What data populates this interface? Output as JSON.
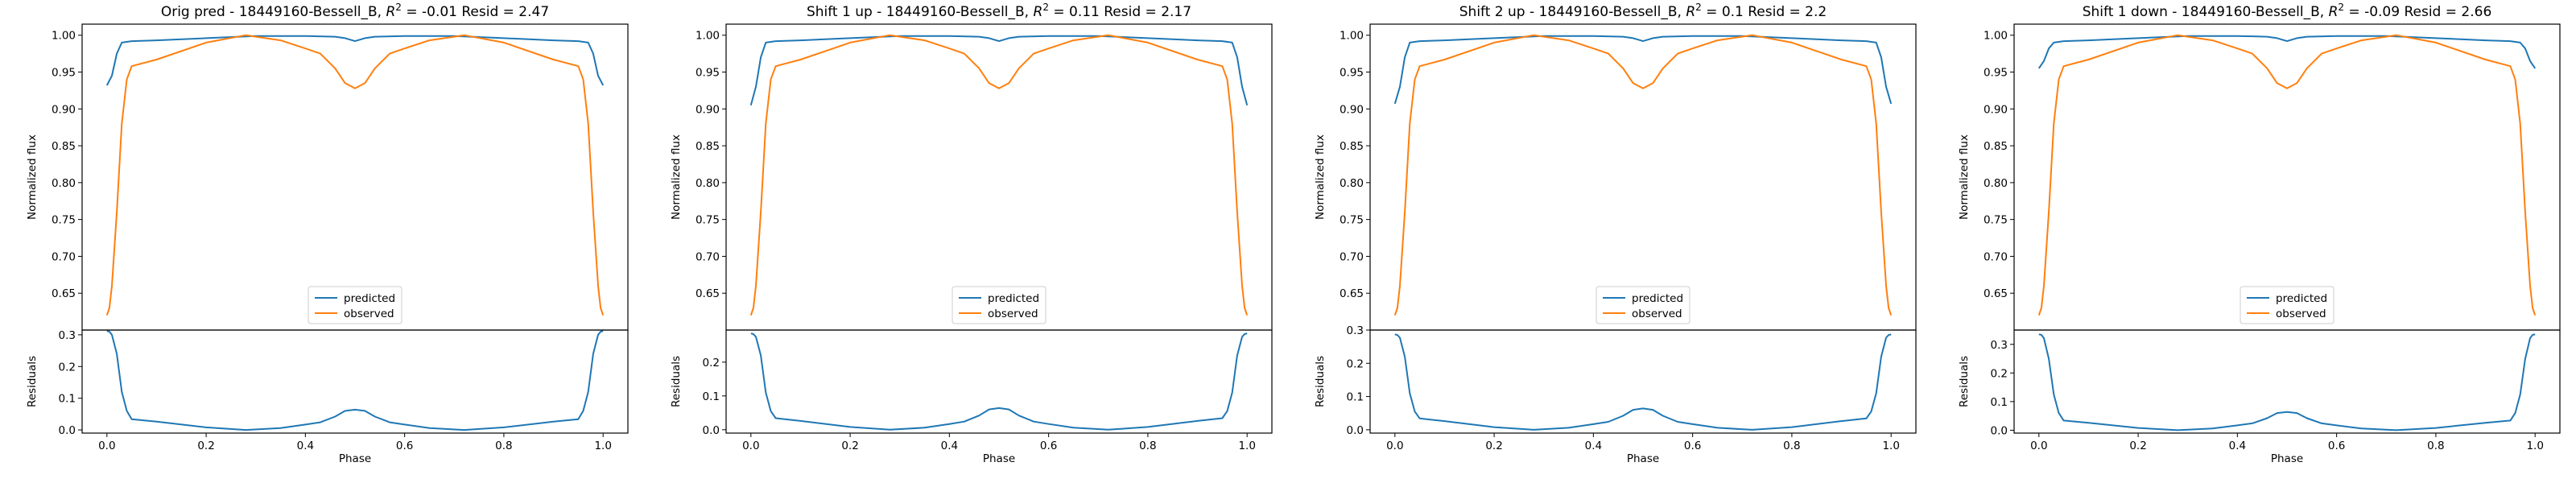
{
  "figure": {
    "colors": {
      "predicted": "#1f77b4",
      "observed": "#ff7f0e",
      "axes": "#000000",
      "legend_edge": "#cccccc"
    }
  },
  "chart_data": [
    {
      "type": "line",
      "title": "Orig pred - 18449160-Bessell_B, R² = -0.01 Resid = 2.47",
      "title_parts": {
        "pre": "Orig pred - 18449160-Bessell_B, ",
        "r2": "R",
        "sup": "2",
        "post": " = -0.01 Resid = 2.47"
      },
      "xlabel": "Phase",
      "ylabel": "Normalized flux",
      "resid_ylabel": "Residuals",
      "legend": {
        "position": "lower center",
        "entries": [
          "predicted",
          "observed"
        ]
      },
      "xlim": [
        -0.05,
        1.05
      ],
      "ylim": [
        0.6,
        1.015
      ],
      "resid_ylim": [
        -0.01,
        0.315
      ],
      "xticks": [
        "0.0",
        "0.2",
        "0.4",
        "0.6",
        "0.8",
        "1.0"
      ],
      "yticks": [
        "0.65",
        "0.70",
        "0.75",
        "0.80",
        "0.85",
        "0.90",
        "0.95",
        "1.00"
      ],
      "resid_yticks": [
        "0.0",
        "0.1",
        "0.2",
        "0.3"
      ],
      "series": [
        {
          "name": "predicted",
          "x": [
            0.0,
            0.01,
            0.02,
            0.03,
            0.05,
            0.1,
            0.2,
            0.3,
            0.4,
            0.46,
            0.48,
            0.5,
            0.52,
            0.54,
            0.6,
            0.7,
            0.8,
            0.9,
            0.95,
            0.97,
            0.98,
            0.99,
            1.0
          ],
          "y": [
            0.932,
            0.945,
            0.975,
            0.99,
            0.992,
            0.993,
            0.996,
            0.999,
            0.999,
            0.998,
            0.996,
            0.992,
            0.996,
            0.998,
            0.999,
            0.999,
            0.996,
            0.993,
            0.992,
            0.99,
            0.975,
            0.945,
            0.932
          ]
        },
        {
          "name": "observed",
          "x": [
            0.0,
            0.005,
            0.01,
            0.02,
            0.03,
            0.04,
            0.05,
            0.1,
            0.2,
            0.28,
            0.35,
            0.4,
            0.43,
            0.46,
            0.48,
            0.5,
            0.52,
            0.54,
            0.57,
            0.6,
            0.65,
            0.72,
            0.8,
            0.9,
            0.95,
            0.96,
            0.97,
            0.98,
            0.99,
            0.995,
            1.0
          ],
          "y": [
            0.62,
            0.63,
            0.66,
            0.76,
            0.88,
            0.94,
            0.958,
            0.967,
            0.99,
            1.0,
            0.993,
            0.982,
            0.975,
            0.955,
            0.935,
            0.928,
            0.935,
            0.955,
            0.975,
            0.982,
            0.993,
            1.0,
            0.99,
            0.967,
            0.958,
            0.94,
            0.88,
            0.76,
            0.66,
            0.63,
            0.62
          ]
        }
      ],
      "residuals": {
        "x": [
          0.0,
          0.005,
          0.01,
          0.02,
          0.03,
          0.04,
          0.05,
          0.1,
          0.2,
          0.28,
          0.35,
          0.4,
          0.43,
          0.46,
          0.48,
          0.5,
          0.52,
          0.54,
          0.57,
          0.6,
          0.65,
          0.72,
          0.8,
          0.9,
          0.95,
          0.96,
          0.97,
          0.98,
          0.99,
          0.995,
          1.0
        ],
        "y": [
          0.312,
          0.31,
          0.3,
          0.24,
          0.12,
          0.06,
          0.034,
          0.026,
          0.008,
          0.0,
          0.006,
          0.017,
          0.024,
          0.042,
          0.06,
          0.064,
          0.06,
          0.042,
          0.024,
          0.017,
          0.006,
          0.0,
          0.008,
          0.026,
          0.034,
          0.06,
          0.12,
          0.24,
          0.3,
          0.31,
          0.312
        ]
      }
    },
    {
      "type": "line",
      "title": "Shift 1 up - 18449160-Bessell_B, R² = 0.11 Resid = 2.17",
      "title_parts": {
        "pre": "Shift 1 up - 18449160-Bessell_B, ",
        "r2": "R",
        "sup": "2",
        "post": " = 0.11 Resid = 2.17"
      },
      "xlabel": "Phase",
      "ylabel": "Normalized flux",
      "resid_ylabel": "Residuals",
      "legend": {
        "position": "lower center",
        "entries": [
          "predicted",
          "observed"
        ]
      },
      "xlim": [
        -0.05,
        1.05
      ],
      "ylim": [
        0.6,
        1.015
      ],
      "resid_ylim": [
        -0.01,
        0.295
      ],
      "xticks": [
        "0.0",
        "0.2",
        "0.4",
        "0.6",
        "0.8",
        "1.0"
      ],
      "yticks": [
        "0.65",
        "0.70",
        "0.75",
        "0.80",
        "0.85",
        "0.90",
        "0.95",
        "1.00"
      ],
      "resid_yticks": [
        "0.0",
        "0.1",
        "0.2"
      ],
      "series": [
        {
          "name": "predicted",
          "x": [
            0.0,
            0.01,
            0.02,
            0.03,
            0.05,
            0.1,
            0.2,
            0.3,
            0.4,
            0.46,
            0.48,
            0.5,
            0.52,
            0.54,
            0.6,
            0.7,
            0.8,
            0.9,
            0.95,
            0.97,
            0.98,
            0.99,
            1.0
          ],
          "y": [
            0.905,
            0.93,
            0.97,
            0.99,
            0.992,
            0.993,
            0.996,
            0.999,
            0.999,
            0.998,
            0.996,
            0.992,
            0.996,
            0.998,
            0.999,
            0.999,
            0.996,
            0.993,
            0.992,
            0.99,
            0.97,
            0.93,
            0.905
          ]
        },
        {
          "name": "observed",
          "x": [
            0.0,
            0.005,
            0.01,
            0.02,
            0.03,
            0.04,
            0.05,
            0.1,
            0.2,
            0.28,
            0.35,
            0.4,
            0.43,
            0.46,
            0.48,
            0.5,
            0.52,
            0.54,
            0.57,
            0.6,
            0.65,
            0.72,
            0.8,
            0.9,
            0.95,
            0.96,
            0.97,
            0.98,
            0.99,
            0.995,
            1.0
          ],
          "y": [
            0.62,
            0.63,
            0.66,
            0.76,
            0.88,
            0.94,
            0.958,
            0.967,
            0.99,
            1.0,
            0.993,
            0.982,
            0.975,
            0.955,
            0.935,
            0.928,
            0.935,
            0.955,
            0.975,
            0.982,
            0.993,
            1.0,
            0.99,
            0.967,
            0.958,
            0.94,
            0.88,
            0.76,
            0.66,
            0.63,
            0.62
          ]
        }
      ],
      "residuals": {
        "x": [
          0.0,
          0.005,
          0.01,
          0.02,
          0.03,
          0.04,
          0.05,
          0.1,
          0.2,
          0.28,
          0.35,
          0.4,
          0.43,
          0.46,
          0.48,
          0.5,
          0.52,
          0.54,
          0.57,
          0.6,
          0.65,
          0.72,
          0.8,
          0.9,
          0.95,
          0.96,
          0.97,
          0.98,
          0.99,
          0.995,
          1.0
        ],
        "y": [
          0.285,
          0.283,
          0.275,
          0.22,
          0.11,
          0.055,
          0.034,
          0.026,
          0.008,
          0.0,
          0.006,
          0.017,
          0.024,
          0.042,
          0.06,
          0.064,
          0.06,
          0.042,
          0.024,
          0.017,
          0.006,
          0.0,
          0.008,
          0.026,
          0.034,
          0.055,
          0.11,
          0.22,
          0.275,
          0.283,
          0.285
        ]
      }
    },
    {
      "type": "line",
      "title": "Shift 2 up - 18449160-Bessell_B, R² = 0.1 Resid = 2.2",
      "title_parts": {
        "pre": "Shift 2 up - 18449160-Bessell_B, ",
        "r2": "R",
        "sup": "2",
        "post": " = 0.1 Resid = 2.2"
      },
      "xlabel": "Phase",
      "ylabel": "Normalized flux",
      "resid_ylabel": "Residuals",
      "legend": {
        "position": "lower center",
        "entries": [
          "predicted",
          "observed"
        ]
      },
      "xlim": [
        -0.05,
        1.05
      ],
      "ylim": [
        0.6,
        1.015
      ],
      "resid_ylim": [
        -0.01,
        0.3
      ],
      "xticks": [
        "0.0",
        "0.2",
        "0.4",
        "0.6",
        "0.8",
        "1.0"
      ],
      "yticks": [
        "0.65",
        "0.70",
        "0.75",
        "0.80",
        "0.85",
        "0.90",
        "0.95",
        "1.00"
      ],
      "resid_yticks": [
        "0.0",
        "0.1",
        "0.2",
        "0.3"
      ],
      "series": [
        {
          "name": "predicted",
          "x": [
            0.0,
            0.01,
            0.02,
            0.03,
            0.05,
            0.1,
            0.2,
            0.3,
            0.4,
            0.46,
            0.48,
            0.5,
            0.52,
            0.54,
            0.6,
            0.7,
            0.8,
            0.9,
            0.95,
            0.97,
            0.98,
            0.99,
            1.0
          ],
          "y": [
            0.907,
            0.93,
            0.97,
            0.99,
            0.992,
            0.993,
            0.996,
            0.999,
            0.999,
            0.998,
            0.996,
            0.992,
            0.996,
            0.998,
            0.999,
            0.999,
            0.996,
            0.993,
            0.992,
            0.99,
            0.97,
            0.93,
            0.907
          ]
        },
        {
          "name": "observed",
          "x": [
            0.0,
            0.005,
            0.01,
            0.02,
            0.03,
            0.04,
            0.05,
            0.1,
            0.2,
            0.28,
            0.35,
            0.4,
            0.43,
            0.46,
            0.48,
            0.5,
            0.52,
            0.54,
            0.57,
            0.6,
            0.65,
            0.72,
            0.8,
            0.9,
            0.95,
            0.96,
            0.97,
            0.98,
            0.99,
            0.995,
            1.0
          ],
          "y": [
            0.62,
            0.63,
            0.66,
            0.76,
            0.88,
            0.94,
            0.958,
            0.967,
            0.99,
            1.0,
            0.993,
            0.982,
            0.975,
            0.955,
            0.935,
            0.928,
            0.935,
            0.955,
            0.975,
            0.982,
            0.993,
            1.0,
            0.99,
            0.967,
            0.958,
            0.94,
            0.88,
            0.76,
            0.66,
            0.63,
            0.62
          ]
        }
      ],
      "residuals": {
        "x": [
          0.0,
          0.005,
          0.01,
          0.02,
          0.03,
          0.04,
          0.05,
          0.1,
          0.2,
          0.28,
          0.35,
          0.4,
          0.43,
          0.46,
          0.48,
          0.5,
          0.52,
          0.54,
          0.57,
          0.6,
          0.65,
          0.72,
          0.8,
          0.9,
          0.95,
          0.96,
          0.97,
          0.98,
          0.99,
          0.995,
          1.0
        ],
        "y": [
          0.287,
          0.285,
          0.277,
          0.22,
          0.11,
          0.055,
          0.034,
          0.026,
          0.008,
          0.0,
          0.006,
          0.017,
          0.024,
          0.042,
          0.06,
          0.064,
          0.06,
          0.042,
          0.024,
          0.017,
          0.006,
          0.0,
          0.008,
          0.026,
          0.034,
          0.055,
          0.11,
          0.22,
          0.277,
          0.285,
          0.287
        ]
      }
    },
    {
      "type": "line",
      "title": "Shift 1 down - 18449160-Bessell_B, R² = -0.09 Resid = 2.66",
      "title_parts": {
        "pre": "Shift 1 down - 18449160-Bessell_B, ",
        "r2": "R",
        "sup": "2",
        "post": " = -0.09 Resid = 2.66"
      },
      "xlabel": "Phase",
      "ylabel": "Normalized flux",
      "resid_ylabel": "Residuals",
      "legend": {
        "position": "lower center",
        "entries": [
          "predicted",
          "observed"
        ]
      },
      "xlim": [
        -0.05,
        1.05
      ],
      "ylim": [
        0.6,
        1.015
      ],
      "resid_ylim": [
        -0.01,
        0.35
      ],
      "xticks": [
        "0.0",
        "0.2",
        "0.4",
        "0.6",
        "0.8",
        "1.0"
      ],
      "yticks": [
        "0.65",
        "0.70",
        "0.75",
        "0.80",
        "0.85",
        "0.90",
        "0.95",
        "1.00"
      ],
      "resid_yticks": [
        "0.0",
        "0.1",
        "0.2",
        "0.3"
      ],
      "series": [
        {
          "name": "predicted",
          "x": [
            0.0,
            0.01,
            0.02,
            0.03,
            0.05,
            0.1,
            0.2,
            0.3,
            0.4,
            0.46,
            0.48,
            0.5,
            0.52,
            0.54,
            0.6,
            0.7,
            0.8,
            0.9,
            0.95,
            0.97,
            0.98,
            0.99,
            1.0
          ],
          "y": [
            0.955,
            0.965,
            0.982,
            0.99,
            0.992,
            0.993,
            0.996,
            0.999,
            0.999,
            0.998,
            0.996,
            0.992,
            0.996,
            0.998,
            0.999,
            0.999,
            0.996,
            0.993,
            0.992,
            0.99,
            0.982,
            0.965,
            0.955
          ]
        },
        {
          "name": "observed",
          "x": [
            0.0,
            0.005,
            0.01,
            0.02,
            0.03,
            0.04,
            0.05,
            0.1,
            0.2,
            0.28,
            0.35,
            0.4,
            0.43,
            0.46,
            0.48,
            0.5,
            0.52,
            0.54,
            0.57,
            0.6,
            0.65,
            0.72,
            0.8,
            0.9,
            0.95,
            0.96,
            0.97,
            0.98,
            0.99,
            0.995,
            1.0
          ],
          "y": [
            0.62,
            0.63,
            0.66,
            0.76,
            0.88,
            0.94,
            0.958,
            0.967,
            0.99,
            1.0,
            0.993,
            0.982,
            0.975,
            0.955,
            0.935,
            0.928,
            0.935,
            0.955,
            0.975,
            0.982,
            0.993,
            1.0,
            0.99,
            0.967,
            0.958,
            0.94,
            0.88,
            0.76,
            0.66,
            0.63,
            0.62
          ]
        }
      ],
      "residuals": {
        "x": [
          0.0,
          0.005,
          0.01,
          0.02,
          0.03,
          0.04,
          0.05,
          0.1,
          0.2,
          0.28,
          0.35,
          0.4,
          0.43,
          0.46,
          0.48,
          0.5,
          0.52,
          0.54,
          0.57,
          0.6,
          0.65,
          0.72,
          0.8,
          0.9,
          0.95,
          0.96,
          0.97,
          0.98,
          0.99,
          0.995,
          1.0
        ],
        "y": [
          0.335,
          0.333,
          0.322,
          0.25,
          0.125,
          0.06,
          0.034,
          0.026,
          0.008,
          0.0,
          0.006,
          0.017,
          0.024,
          0.042,
          0.06,
          0.064,
          0.06,
          0.042,
          0.024,
          0.017,
          0.006,
          0.0,
          0.008,
          0.026,
          0.034,
          0.06,
          0.125,
          0.25,
          0.322,
          0.333,
          0.335
        ]
      }
    }
  ]
}
